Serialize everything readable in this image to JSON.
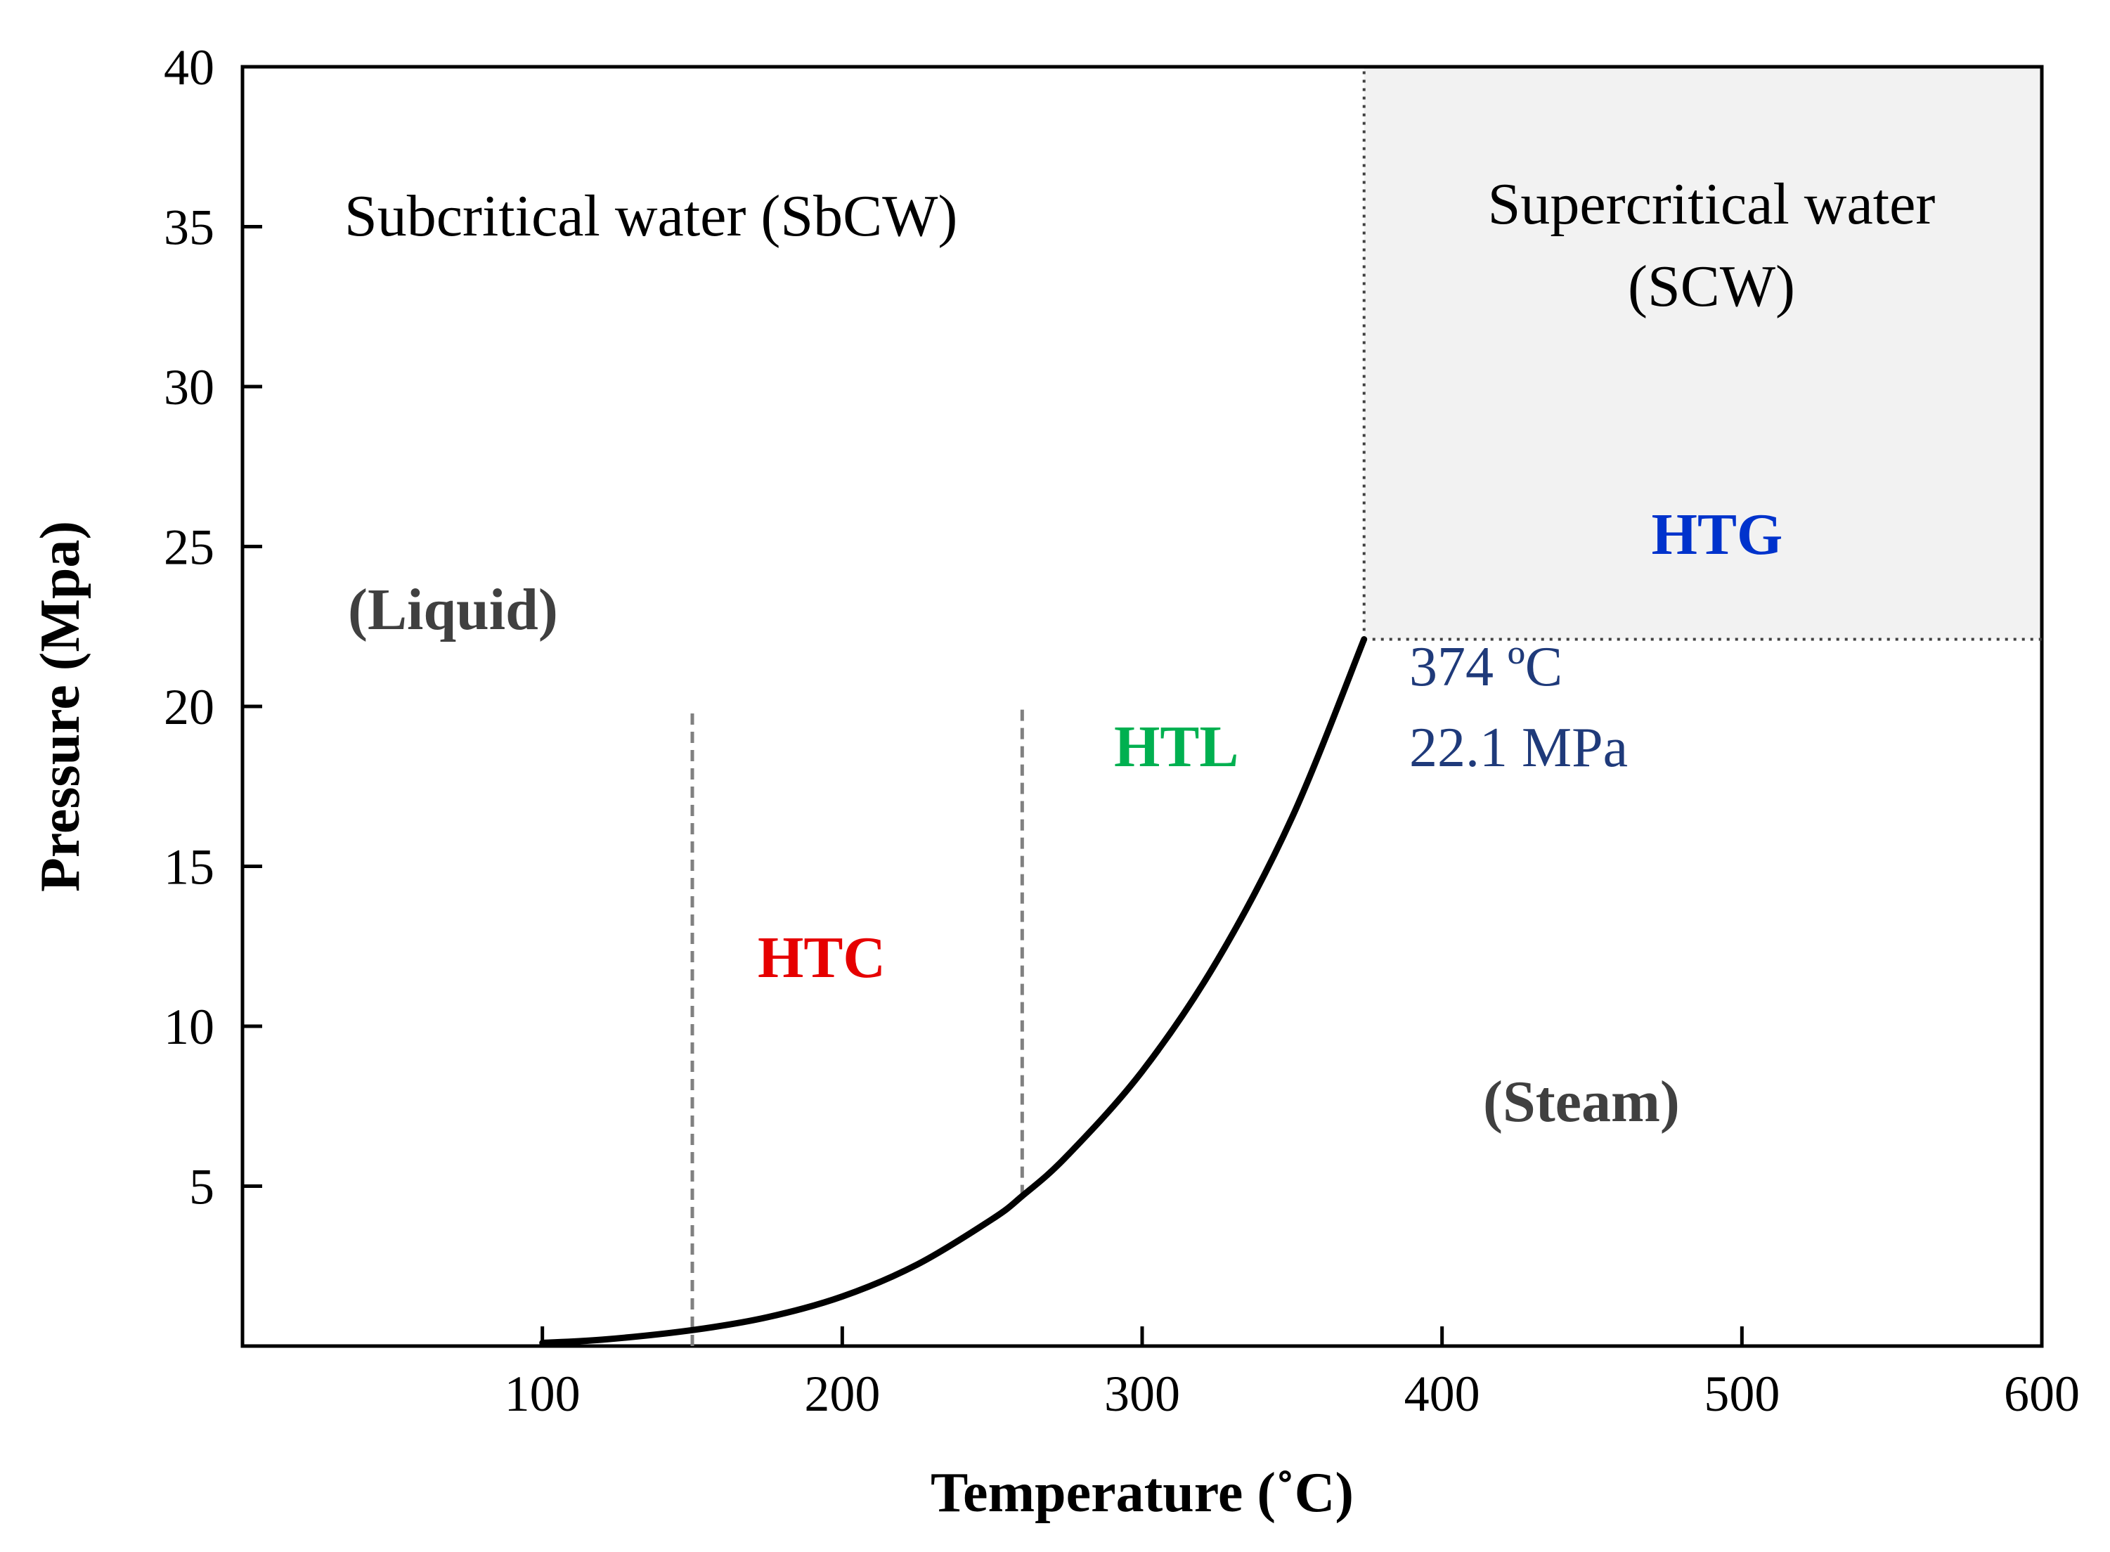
{
  "chart_data": {
    "type": "line",
    "title": "",
    "xlabel": "Temperature (˚C)",
    "ylabel": "Pressure (Mpa)",
    "xlim": [
      0,
      600
    ],
    "ylim": [
      0,
      40
    ],
    "x_ticks": [
      100,
      200,
      300,
      400,
      500,
      600
    ],
    "y_ticks": [
      5,
      10,
      15,
      20,
      25,
      30,
      35,
      40
    ],
    "grid": false,
    "series": [
      {
        "name": "Vapor pressure curve",
        "x": [
          100,
          120,
          150,
          175,
          200,
          225,
          250,
          260,
          275,
          300,
          325,
          350,
          374
        ],
        "y": [
          0.1,
          0.2,
          0.5,
          0.9,
          1.55,
          2.55,
          3.97,
          4.69,
          5.95,
          8.59,
          12.05,
          16.53,
          22.1
        ]
      }
    ],
    "critical_point": {
      "x": 374,
      "y": 22.1,
      "label_temp": "374 ºC",
      "label_pressure": "22.1 MPa"
    },
    "reference_lines": [
      {
        "name": "HTC lower bound",
        "x": 150,
        "y_range": [
          0,
          20
        ],
        "style": "dashed"
      },
      {
        "name": "HTC / HTL boundary",
        "x": 260,
        "y_range": [
          4.69,
          20
        ],
        "style": "dashed"
      },
      {
        "name": "Critical temperature",
        "x": 374,
        "y_range": [
          22.1,
          40
        ],
        "style": "dotted"
      },
      {
        "name": "Critical pressure",
        "y": 22.1,
        "x_range": [
          374,
          600
        ],
        "style": "dotted"
      }
    ],
    "shaded_regions": [
      {
        "name": "Supercritical water region",
        "x_range": [
          374,
          600
        ],
        "y_range": [
          22.1,
          40
        ],
        "color": "#f2f2f2"
      }
    ],
    "annotations": {
      "subcritical": "Subcritical water (SbCW)",
      "supercritical_line1": "Supercritical water",
      "supercritical_line2": "(SCW)",
      "liquid": "(Liquid)",
      "steam": "(Steam)",
      "htc": "HTC",
      "htl": "HTL",
      "htg": "HTG"
    },
    "colors": {
      "htc": "#e60000",
      "htl": "#00b050",
      "htg": "#0033cc",
      "critical_text": "#1f3a7a",
      "phase_text": "#404040",
      "curve": "#000000",
      "shade": "#f2f2f2",
      "guide": "#808080"
    }
  }
}
